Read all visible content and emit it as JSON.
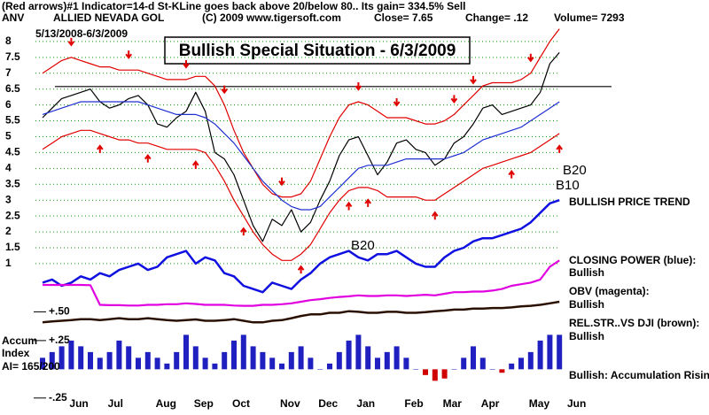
{
  "chart_data": {
    "type": "line",
    "title": "Bullish Special Situation - 6/3/2009",
    "header": [
      "(Red arrows)#1 Indicator=14-d St-KLine goes back above 20/below 80.. Its gain= 334.5% Sell",
      "ANV",
      "ALLIED NEVADA GOL",
      "(C) 2009 www.tigersoft.com",
      "Close= 7.65",
      "Change= .12",
      "Volume= 7293"
    ],
    "date_range": "5/13/2008-6/3/2009",
    "categories": [
      null,
      null,
      null,
      "Jun",
      null,
      null,
      null,
      "Jul",
      null,
      null,
      null,
      null,
      "Aug",
      null,
      null,
      null,
      "Sep",
      null,
      null,
      null,
      "Oct",
      null,
      null,
      null,
      null,
      "Nov",
      null,
      null,
      null,
      "Dec",
      null,
      null,
      null,
      "Jan",
      null,
      null,
      null,
      null,
      "Feb",
      null,
      null,
      null,
      "Mar",
      null,
      null,
      null,
      "Apr",
      null,
      null,
      null,
      null,
      "May",
      null,
      null,
      null,
      "Jun"
    ],
    "ylim": [
      -3.38,
      8.75
    ],
    "yticks": [
      8,
      7.5,
      7,
      6.5,
      6,
      5.5,
      5,
      4.5,
      4,
      3.5,
      3,
      2.5,
      2,
      1.5,
      1
    ],
    "grid": true,
    "grid_color": "#00a000",
    "y2lim": [
      -0.29,
      3.06
    ],
    "y2ticks": [
      {
        "value": 0.5,
        "label": "+.50"
      },
      {
        "value": 0.25,
        "label": "+.25"
      },
      {
        "value": -0.25,
        "label": "-.25"
      }
    ],
    "resistance": 6.58,
    "signal_color": "#e00000",
    "buy_signals": [
      6,
      11,
      16,
      21,
      27,
      32,
      34,
      41,
      49,
      54
    ],
    "sell_signals": [
      3,
      9,
      15,
      19,
      25,
      33,
      37,
      43,
      45,
      51
    ],
    "series": [
      {
        "color": "#000000",
        "values": [
          5.6,
          5.9,
          6.2,
          6.3,
          6.4,
          6.5,
          6.1,
          5.9,
          6.0,
          6.2,
          6.3,
          6.0,
          5.4,
          5.3,
          5.6,
          5.8,
          6.4,
          5.8,
          4.5,
          4.3,
          3.8,
          3.0,
          2.2,
          1.7,
          2.4,
          2.2,
          2.7,
          2.0,
          2.3,
          3.0,
          3.6,
          4.4,
          4.9,
          5.0,
          4.4,
          3.8,
          4.2,
          4.8,
          4.9,
          4.6,
          4.5,
          4.1,
          4.3,
          4.8,
          5.0,
          5.4,
          5.9,
          6.0,
          5.7,
          5.8,
          5.9,
          6.0,
          6.4,
          7.3,
          7.65,
          null
        ]
      },
      {
        "color": "#e00000",
        "values": [
          7.0,
          7.2,
          7.4,
          7.5,
          7.4,
          7.3,
          7.2,
          7.2,
          7.1,
          7.1,
          7.1,
          7.0,
          6.9,
          6.8,
          6.8,
          6.8,
          6.9,
          6.9,
          6.6,
          6.0,
          5.2,
          4.5,
          4.0,
          3.5,
          3.2,
          3.1,
          3.1,
          3.2,
          3.6,
          4.3,
          5.0,
          5.6,
          6.0,
          6.1,
          6.0,
          5.8,
          5.6,
          5.6,
          5.6,
          5.5,
          5.4,
          5.4,
          5.5,
          5.7,
          6.0,
          6.3,
          6.6,
          6.7,
          6.7,
          6.7,
          6.8,
          7.0,
          7.5,
          8.0,
          8.4,
          null
        ]
      },
      {
        "color": "#e00000",
        "values": [
          4.6,
          4.8,
          5.0,
          5.1,
          5.2,
          5.2,
          5.1,
          5.0,
          4.9,
          4.9,
          4.8,
          4.8,
          4.7,
          4.6,
          4.6,
          4.6,
          4.6,
          4.5,
          4.1,
          3.6,
          3.0,
          2.5,
          2.0,
          1.6,
          1.3,
          1.1,
          1.1,
          1.3,
          1.6,
          2.1,
          2.6,
          3.0,
          3.3,
          3.4,
          3.4,
          3.3,
          3.1,
          3.1,
          3.1,
          3.1,
          3.0,
          3.0,
          3.2,
          3.4,
          3.6,
          3.8,
          4.0,
          4.1,
          4.2,
          4.3,
          4.4,
          4.5,
          4.7,
          4.9,
          5.1,
          null
        ]
      },
      {
        "color": "#2030d0",
        "values": [
          5.7,
          5.8,
          5.9,
          6.0,
          6.1,
          6.1,
          6.1,
          6.1,
          6.1,
          6.1,
          6.1,
          6.0,
          5.9,
          5.8,
          5.7,
          5.7,
          5.7,
          5.6,
          5.4,
          5.1,
          4.8,
          4.4,
          4.0,
          3.6,
          3.3,
          3.0,
          2.8,
          2.7,
          2.7,
          2.8,
          3.1,
          3.4,
          3.7,
          4.0,
          4.1,
          4.1,
          4.1,
          4.2,
          4.3,
          4.3,
          4.3,
          4.3,
          4.3,
          4.4,
          4.5,
          4.7,
          4.9,
          5.0,
          5.1,
          5.2,
          5.3,
          5.5,
          5.7,
          5.9,
          6.1,
          null
        ]
      },
      {
        "name": "CLOSING POWER (blue):",
        "color": "#1010e0",
        "values": [
          0.4,
          0.5,
          0.3,
          0.4,
          0.6,
          0.5,
          0.7,
          0.6,
          0.8,
          0.9,
          1.0,
          0.8,
          0.9,
          1.2,
          1.3,
          1.4,
          1.0,
          1.2,
          1.1,
          0.7,
          0.6,
          0.3,
          0.2,
          0.1,
          0.4,
          0.3,
          0.2,
          0.5,
          0.7,
          1.0,
          1.2,
          1.3,
          1.4,
          1.2,
          1.1,
          1.3,
          1.3,
          1.4,
          1.2,
          1.0,
          0.9,
          0.9,
          1.2,
          1.4,
          1.5,
          1.7,
          1.8,
          1.8,
          1.9,
          2.0,
          2.1,
          2.3,
          2.6,
          2.9,
          3.0,
          null
        ]
      },
      {
        "name": "OBV (magenta):",
        "color": "#e000e0",
        "values": [
          0.33,
          0.33,
          0.33,
          0.33,
          0.33,
          0.32,
          -0.3,
          -0.31,
          -0.31,
          -0.32,
          -0.32,
          -0.3,
          -0.3,
          -0.28,
          -0.28,
          -0.25,
          -0.27,
          -0.3,
          -0.3,
          -0.3,
          -0.32,
          -0.33,
          -0.33,
          -0.3,
          -0.3,
          -0.28,
          -0.25,
          -0.2,
          -0.15,
          -0.12,
          -0.08,
          -0.05,
          -0.03,
          0,
          -0.02,
          -0.02,
          0,
          0,
          -0.02,
          0,
          0.02,
          0,
          0.05,
          0.1,
          0.1,
          0.12,
          0.12,
          0.15,
          0.2,
          0.3,
          0.35,
          0.4,
          0.5,
          0.9,
          1.1,
          null
        ]
      },
      {
        "name": "REL.STR..VS DJI (brown):",
        "color": "#2a1000",
        "values": [
          -0.85,
          -0.82,
          -0.8,
          -0.78,
          -0.75,
          -0.75,
          -0.78,
          -0.75,
          -0.72,
          -0.75,
          -0.75,
          -0.72,
          -0.75,
          -0.78,
          -0.8,
          -0.78,
          -0.76,
          -0.8,
          -0.8,
          -0.78,
          -0.75,
          -0.8,
          -0.85,
          -0.85,
          -0.8,
          -0.78,
          -0.72,
          -0.65,
          -0.6,
          -0.6,
          -0.55,
          -0.55,
          -0.5,
          -0.52,
          -0.55,
          -0.55,
          -0.52,
          -0.52,
          -0.55,
          -0.55,
          -0.53,
          -0.5,
          -0.48,
          -0.45,
          -0.45,
          -0.42,
          -0.42,
          -0.4,
          -0.4,
          -0.38,
          -0.35,
          -0.33,
          -0.3,
          -0.25,
          -0.2,
          null
        ]
      },
      {
        "type": "bar",
        "axis": "y2",
        "color": "#2020c0",
        "negative_color": "#d00000",
        "values": [
          0.1,
          0.15,
          0.2,
          0.25,
          0.2,
          0.15,
          0.1,
          0.15,
          0.25,
          0.2,
          0.1,
          0.15,
          0.1,
          0.05,
          0.15,
          0.3,
          0.2,
          0.1,
          0.05,
          0.15,
          0.25,
          0.3,
          0.2,
          0.15,
          0.1,
          0.05,
          0.15,
          0.2,
          0.1,
          0,
          0.05,
          0.15,
          0.25,
          0.3,
          0.2,
          0.1,
          0.15,
          0.2,
          0.1,
          0,
          -0.05,
          -0.1,
          -0.08,
          0,
          0.1,
          0.2,
          0.1,
          0,
          -0.03,
          0.05,
          0.1,
          0.15,
          0.25,
          0.3,
          0.3,
          null
        ]
      }
    ],
    "annotations": [
      "B20",
      "B20",
      "B10"
    ],
    "side_labels": [
      "BULLISH PRICE TREND",
      "Bullish",
      "Bullish",
      "Bullish",
      "Bullish: Accumulation Rising"
    ],
    "accum_labels": [
      "Accum",
      "Index",
      "AI= 165/200"
    ]
  }
}
